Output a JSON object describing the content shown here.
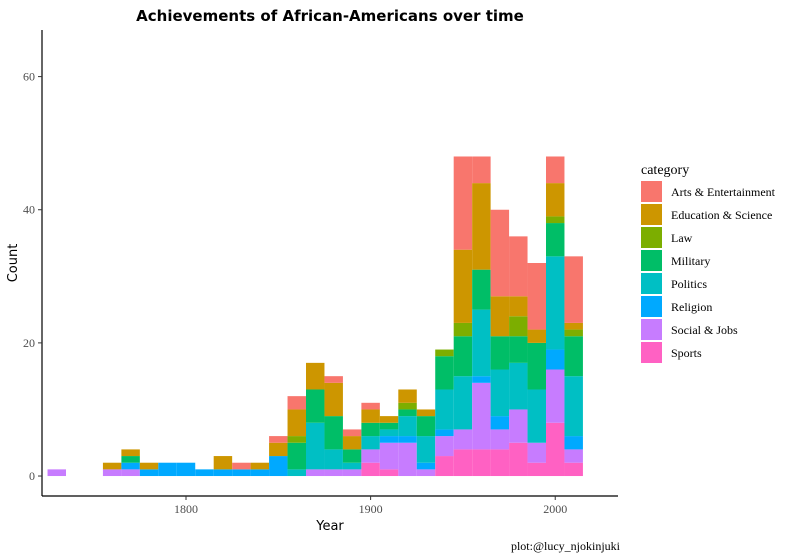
{
  "chart_data": {
    "type": "bar",
    "stacked": true,
    "title": "Achievements of African-Americans over time",
    "xlabel": "Year",
    "ylabel": "Count",
    "xlim": [
      1722,
      2034
    ],
    "ylim": [
      -3,
      67
    ],
    "x_ticks": [
      1800,
      1900,
      2000
    ],
    "y_ticks": [
      0,
      20,
      40,
      60
    ],
    "grid": false,
    "legend_title": "category",
    "legend_position": "right",
    "caption": "plot:@lucy_njokinjuki",
    "bin_width": 10,
    "bins": [
      1730,
      1760,
      1770,
      1780,
      1790,
      1800,
      1810,
      1820,
      1830,
      1840,
      1850,
      1860,
      1870,
      1880,
      1890,
      1900,
      1910,
      1920,
      1930,
      1940,
      1950,
      1960,
      1970,
      1980,
      1990,
      2000,
      2010
    ],
    "series": [
      {
        "name": "Sports",
        "color": "#FF61C3",
        "values": [
          0,
          0,
          0,
          0,
          0,
          0,
          0,
          0,
          0,
          0,
          0,
          0,
          0,
          0,
          0,
          2,
          1,
          0,
          0,
          3,
          4,
          4,
          4,
          5,
          2,
          8,
          2
        ]
      },
      {
        "name": "Social & Jobs",
        "color": "#C77CFF",
        "values": [
          1,
          1,
          1,
          0,
          0,
          0,
          0,
          0,
          0,
          0,
          0,
          0,
          1,
          1,
          1,
          2,
          4,
          5,
          1,
          3,
          3,
          10,
          3,
          5,
          3,
          8,
          2
        ]
      },
      {
        "name": "Religion",
        "color": "#00A9FF",
        "values": [
          0,
          0,
          1,
          1,
          2,
          2,
          1,
          1,
          1,
          1,
          3,
          0,
          0,
          0,
          0,
          0,
          1,
          1,
          1,
          1,
          0,
          1,
          2,
          0,
          0,
          3,
          2
        ]
      },
      {
        "name": "Politics",
        "color": "#00BFC4",
        "values": [
          0,
          0,
          0,
          0,
          0,
          0,
          0,
          0,
          0,
          0,
          0,
          1,
          7,
          3,
          1,
          2,
          1,
          3,
          4,
          6,
          8,
          10,
          7,
          7,
          8,
          14,
          9
        ]
      },
      {
        "name": "Military",
        "color": "#00BE67",
        "values": [
          0,
          0,
          1,
          0,
          0,
          0,
          0,
          0,
          0,
          0,
          0,
          4,
          5,
          5,
          2,
          2,
          1,
          1,
          3,
          5,
          6,
          6,
          5,
          4,
          7,
          5,
          6
        ]
      },
      {
        "name": "Law",
        "color": "#7CAE00",
        "values": [
          0,
          0,
          0,
          0,
          0,
          0,
          0,
          0,
          0,
          0,
          0,
          1,
          0,
          0,
          0,
          0,
          0,
          1,
          0,
          1,
          2,
          0,
          0,
          3,
          0,
          1,
          1
        ]
      },
      {
        "name": "Education & Science",
        "color": "#CD9600",
        "values": [
          0,
          1,
          1,
          1,
          0,
          0,
          0,
          2,
          0,
          1,
          2,
          4,
          4,
          5,
          2,
          2,
          1,
          2,
          1,
          0,
          11,
          13,
          6,
          3,
          2,
          5,
          1
        ]
      },
      {
        "name": "Arts & Entertainment",
        "color": "#F8766D",
        "values": [
          0,
          0,
          0,
          0,
          0,
          0,
          0,
          0,
          1,
          0,
          1,
          2,
          0,
          1,
          1,
          1,
          0,
          0,
          0,
          0,
          14,
          4,
          13,
          9,
          10,
          4,
          10
        ]
      }
    ]
  }
}
